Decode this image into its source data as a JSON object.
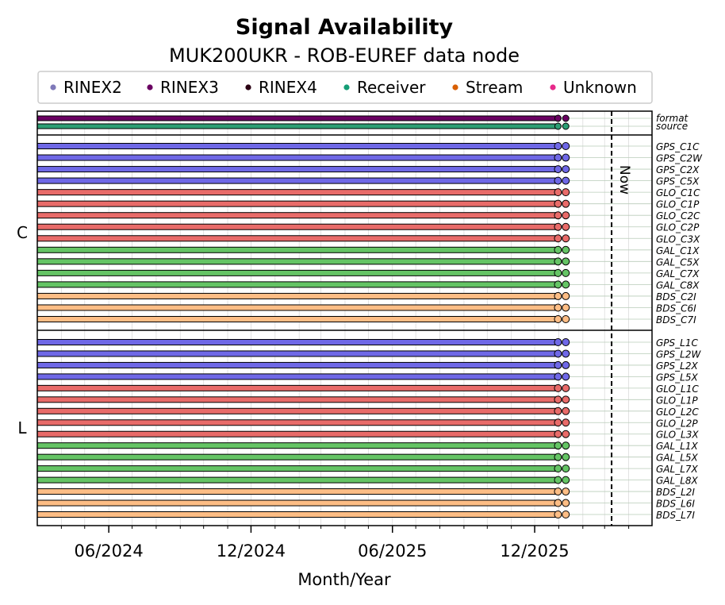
{
  "chart_data": {
    "type": "timeline",
    "title": "Signal Availability",
    "subtitle": "MUK200UKR - ROB-EUREF data node",
    "xlabel": "Month/Year",
    "x_range": [
      "2024-03-01",
      "2026-05-01"
    ],
    "x_ticks": [
      {
        "date": "2024-06-01",
        "label": "06/2024"
      },
      {
        "date": "2024-12-01",
        "label": "12/2024"
      },
      {
        "date": "2025-06-01",
        "label": "06/2025"
      },
      {
        "date": "2025-12-01",
        "label": "12/2025"
      }
    ],
    "now_label": "Now",
    "now_date": "2026-03-10",
    "grid": true,
    "legend_position": "top",
    "legend": [
      {
        "label": "RINEX2",
        "color": "#7f79b9"
      },
      {
        "label": "RINEX3",
        "color": "#6a0062"
      },
      {
        "label": "RINEX4",
        "color": "#2b0013"
      },
      {
        "label": "Receiver",
        "color": "#159e76"
      },
      {
        "label": "Stream",
        "color": "#d95f02"
      },
      {
        "label": "Unknown",
        "color": "#e7298a"
      }
    ],
    "colors": {
      "GPS": "#6f68e6",
      "GLO": "#e86b69",
      "GAL": "#65c465",
      "BDS": "#fdbd85",
      "format": "#6a0062",
      "source": "#2d9e74"
    },
    "meta_rows": [
      {
        "label": "format",
        "start": "2024-03-01",
        "end": "2025-12-31",
        "points": [
          "2025-12-31",
          "2026-01-10"
        ],
        "color": "#6a0062"
      },
      {
        "label": "source",
        "start": "2024-03-01",
        "end": "2025-12-31",
        "points": [
          "2025-12-31",
          "2026-01-10"
        ],
        "color": "#2d9e74"
      }
    ],
    "groups": [
      {
        "name": "C",
        "signals": [
          {
            "label": "GPS_C1C",
            "system": "GPS"
          },
          {
            "label": "GPS_C2W",
            "system": "GPS"
          },
          {
            "label": "GPS_C2X",
            "system": "GPS"
          },
          {
            "label": "GPS_C5X",
            "system": "GPS"
          },
          {
            "label": "GLO_C1C",
            "system": "GLO"
          },
          {
            "label": "GLO_C1P",
            "system": "GLO"
          },
          {
            "label": "GLO_C2C",
            "system": "GLO"
          },
          {
            "label": "GLO_C2P",
            "system": "GLO"
          },
          {
            "label": "GLO_C3X",
            "system": "GLO"
          },
          {
            "label": "GAL_C1X",
            "system": "GAL"
          },
          {
            "label": "GAL_C5X",
            "system": "GAL"
          },
          {
            "label": "GAL_C7X",
            "system": "GAL"
          },
          {
            "label": "GAL_C8X",
            "system": "GAL"
          },
          {
            "label": "BDS_C2I",
            "system": "BDS"
          },
          {
            "label": "BDS_C6I",
            "system": "BDS"
          },
          {
            "label": "BDS_C7I",
            "system": "BDS"
          }
        ]
      },
      {
        "name": "L",
        "signals": [
          {
            "label": "GPS_L1C",
            "system": "GPS"
          },
          {
            "label": "GPS_L2W",
            "system": "GPS"
          },
          {
            "label": "GPS_L2X",
            "system": "GPS"
          },
          {
            "label": "GPS_L5X",
            "system": "GPS"
          },
          {
            "label": "GLO_L1C",
            "system": "GLO"
          },
          {
            "label": "GLO_L1P",
            "system": "GLO"
          },
          {
            "label": "GLO_L2C",
            "system": "GLO"
          },
          {
            "label": "GLO_L2P",
            "system": "GLO"
          },
          {
            "label": "GLO_L3X",
            "system": "GLO"
          },
          {
            "label": "GAL_L1X",
            "system": "GAL"
          },
          {
            "label": "GAL_L5X",
            "system": "GAL"
          },
          {
            "label": "GAL_L7X",
            "system": "GAL"
          },
          {
            "label": "GAL_L8X",
            "system": "GAL"
          },
          {
            "label": "BDS_L2I",
            "system": "BDS"
          },
          {
            "label": "BDS_L6I",
            "system": "BDS"
          },
          {
            "label": "BDS_L7I",
            "system": "BDS"
          }
        ]
      }
    ],
    "signal_span": {
      "start": "2024-03-01",
      "end": "2025-12-31",
      "points": [
        "2025-12-31",
        "2026-01-10"
      ]
    }
  }
}
